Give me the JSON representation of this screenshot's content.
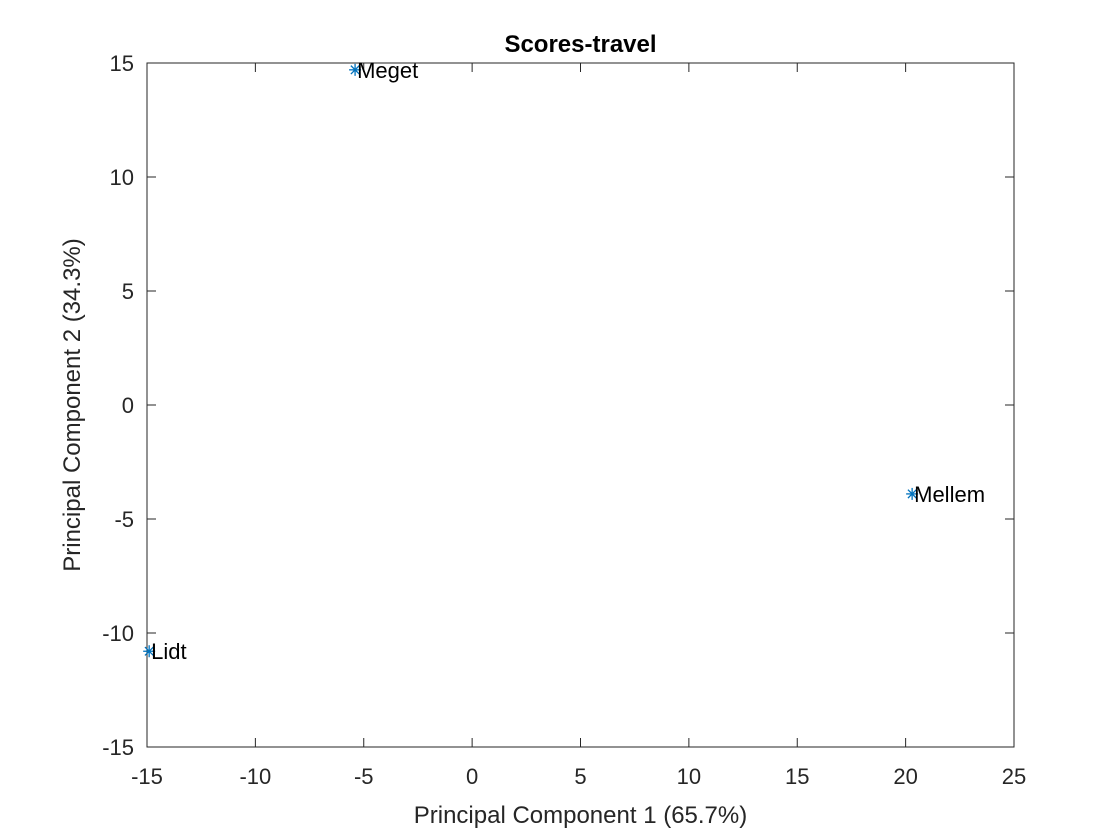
{
  "chart_data": {
    "type": "scatter",
    "title": "Scores-travel",
    "xlabel": "Principal Component 1 (65.7%)",
    "ylabel": "Principal Component 2 (34.3%)",
    "xlim": [
      -15,
      25
    ],
    "ylim": [
      -15,
      15
    ],
    "xticks": [
      -15,
      -10,
      -5,
      0,
      5,
      10,
      15,
      20,
      25
    ],
    "yticks": [
      -15,
      -10,
      -5,
      0,
      5,
      10,
      15
    ],
    "xtick_labels": [
      "-15",
      "-10",
      "-5",
      "0",
      "5",
      "10",
      "15",
      "20",
      "25"
    ],
    "ytick_labels": [
      "-15",
      "-10",
      "-5",
      "0",
      "5",
      "10",
      "15"
    ],
    "grid": false,
    "marker": "asterisk",
    "points": [
      {
        "label": "Meget",
        "x": -5.4,
        "y": 14.7
      },
      {
        "label": "Mellem",
        "x": 20.3,
        "y": -3.9
      },
      {
        "label": "Lidt",
        "x": -14.9,
        "y": -10.8
      }
    ],
    "colors": {
      "marker": "#0072BD",
      "axis": "#262626",
      "text": "#000000"
    }
  }
}
